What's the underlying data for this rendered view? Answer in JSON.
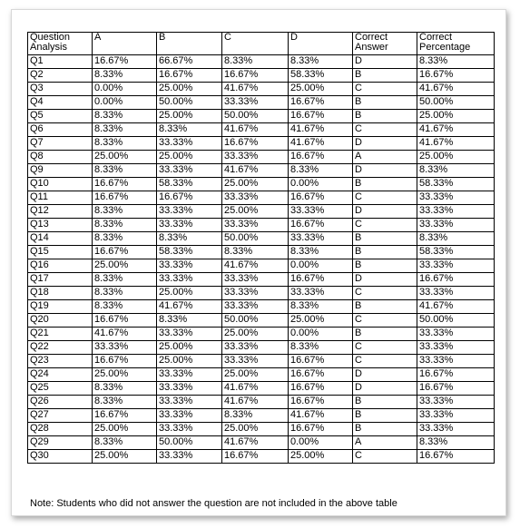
{
  "table": {
    "headers": [
      "Question Analysis",
      "A",
      "B",
      "C",
      "D",
      "Correct Answer",
      "Correct Percentage"
    ],
    "rows": [
      [
        "Q1",
        "16.67%",
        "66.67%",
        "8.33%",
        "8.33%",
        "D",
        "8.33%"
      ],
      [
        "Q2",
        "8.33%",
        "16.67%",
        "16.67%",
        "58.33%",
        "B",
        "16.67%"
      ],
      [
        "Q3",
        "0.00%",
        "25.00%",
        "41.67%",
        "25.00%",
        "C",
        "41.67%"
      ],
      [
        "Q4",
        "0.00%",
        "50.00%",
        "33.33%",
        "16.67%",
        "B",
        "50.00%"
      ],
      [
        "Q5",
        "8.33%",
        "25.00%",
        "50.00%",
        "16.67%",
        "B",
        "25.00%"
      ],
      [
        "Q6",
        "8.33%",
        "8.33%",
        "41.67%",
        "41.67%",
        "C",
        "41.67%"
      ],
      [
        "Q7",
        "8.33%",
        "33.33%",
        "16.67%",
        "41.67%",
        "D",
        "41.67%"
      ],
      [
        "Q8",
        "25.00%",
        "25.00%",
        "33.33%",
        "16.67%",
        "A",
        "25.00%"
      ],
      [
        "Q9",
        "8.33%",
        "33.33%",
        "41.67%",
        "8.33%",
        "D",
        "8.33%"
      ],
      [
        "Q10",
        "16.67%",
        "58.33%",
        "25.00%",
        "0.00%",
        "B",
        "58.33%"
      ],
      [
        "Q11",
        "16.67%",
        "16.67%",
        "33.33%",
        "16.67%",
        "C",
        "33.33%"
      ],
      [
        "Q12",
        "8.33%",
        "33.33%",
        "25.00%",
        "33.33%",
        "D",
        "33.33%"
      ],
      [
        "Q13",
        "8.33%",
        "33.33%",
        "33.33%",
        "16.67%",
        "C",
        "33.33%"
      ],
      [
        "Q14",
        "8.33%",
        "8.33%",
        "50.00%",
        "33.33%",
        "B",
        "8.33%"
      ],
      [
        "Q15",
        "16.67%",
        "58.33%",
        "8.33%",
        "8.33%",
        "B",
        "58.33%"
      ],
      [
        "Q16",
        "25.00%",
        "33.33%",
        "41.67%",
        "0.00%",
        "B",
        "33.33%"
      ],
      [
        "Q17",
        "8.33%",
        "33.33%",
        "33.33%",
        "16.67%",
        "D",
        "16.67%"
      ],
      [
        "Q18",
        "8.33%",
        "25.00%",
        "33.33%",
        "33.33%",
        "C",
        "33.33%"
      ],
      [
        "Q19",
        "8.33%",
        "41.67%",
        "33.33%",
        "8.33%",
        "B",
        "41.67%"
      ],
      [
        "Q20",
        "16.67%",
        "8.33%",
        "50.00%",
        "25.00%",
        "C",
        "50.00%"
      ],
      [
        "Q21",
        "41.67%",
        "33.33%",
        "25.00%",
        "0.00%",
        "B",
        "33.33%"
      ],
      [
        "Q22",
        "33.33%",
        "25.00%",
        "33.33%",
        "8.33%",
        "C",
        "33.33%"
      ],
      [
        "Q23",
        "16.67%",
        "25.00%",
        "33.33%",
        "16.67%",
        "C",
        "33.33%"
      ],
      [
        "Q24",
        "25.00%",
        "33.33%",
        "25.00%",
        "16.67%",
        "D",
        "16.67%"
      ],
      [
        "Q25",
        "8.33%",
        "33.33%",
        "41.67%",
        "16.67%",
        "D",
        "16.67%"
      ],
      [
        "Q26",
        "8.33%",
        "33.33%",
        "41.67%",
        "16.67%",
        "B",
        "33.33%"
      ],
      [
        "Q27",
        "16.67%",
        "33.33%",
        "8.33%",
        "41.67%",
        "B",
        "33.33%"
      ],
      [
        "Q28",
        "25.00%",
        "33.33%",
        "25.00%",
        "16.67%",
        "B",
        "33.33%"
      ],
      [
        "Q29",
        "8.33%",
        "50.00%",
        "41.67%",
        "0.00%",
        "A",
        "8.33%"
      ],
      [
        "Q30",
        "25.00%",
        "33.33%",
        "16.67%",
        "25.00%",
        "C",
        "16.67%"
      ]
    ]
  },
  "note": "Note: Students who did not answer the question are not included in the above table"
}
